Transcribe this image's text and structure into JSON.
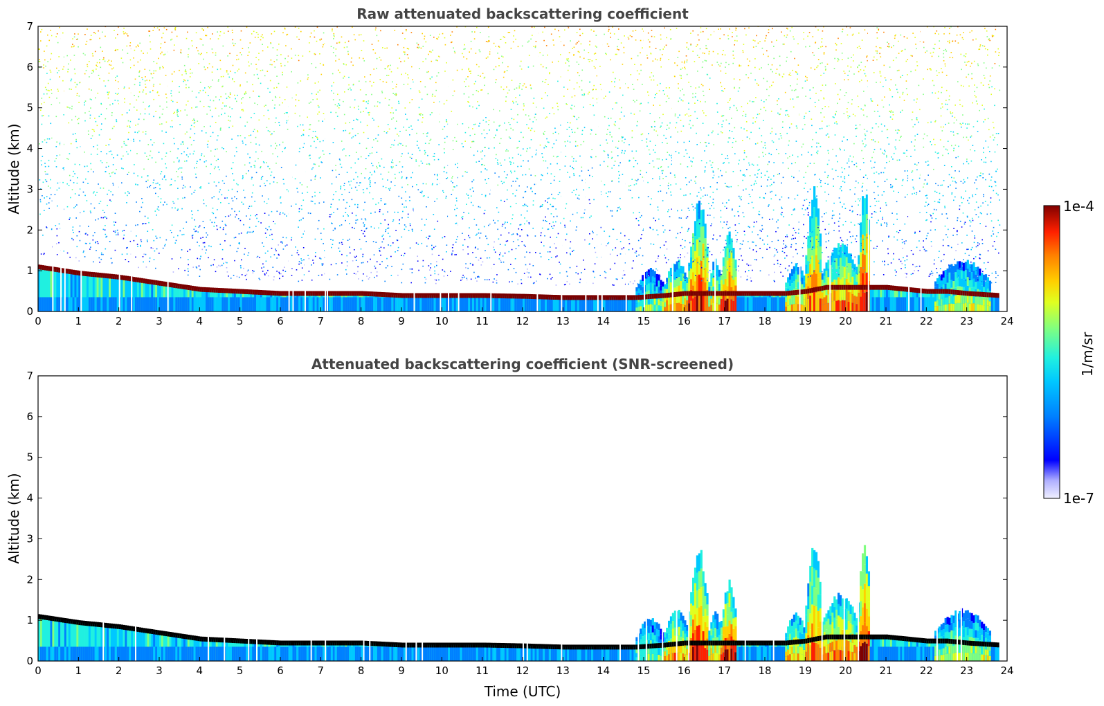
{
  "figure": {
    "colormap": [
      "#f0f0ff",
      "#b0b0ff",
      "#0000ff",
      "#0080ff",
      "#00c8ff",
      "#20f0e0",
      "#80ff80",
      "#e0ff20",
      "#ffd000",
      "#ff8000",
      "#ff2000",
      "#800000"
    ],
    "mark_colors": {
      "band": "#7a0000",
      "screened_band": "#000000",
      "frame": "#000000"
    }
  },
  "colorbar": {
    "max_label": "1e-4",
    "min_label": "1e-7",
    "unit_label": "1/m/sr",
    "range": [
      1e-07,
      0.0001
    ],
    "scale": "log"
  },
  "chart_data": [
    {
      "type": "heatmap",
      "title": "Raw attenuated backscattering coefficient",
      "xlabel": "",
      "ylabel": "Altitude (km)",
      "xlim": [
        0,
        24
      ],
      "ylim": [
        0,
        7
      ],
      "x_ticks": [
        "0",
        "1",
        "2",
        "3",
        "4",
        "5",
        "6",
        "7",
        "8",
        "9",
        "10",
        "11",
        "12",
        "13",
        "14",
        "15",
        "16",
        "17",
        "18",
        "19",
        "20",
        "21",
        "22",
        "23",
        "24"
      ],
      "y_ticks": [
        "0",
        "1",
        "2",
        "3",
        "4",
        "5",
        "6",
        "7"
      ],
      "boundary_layer_top_km": {
        "x": [
          0,
          1,
          2,
          3,
          4,
          5,
          6,
          7,
          8,
          9,
          10,
          11,
          12,
          13,
          14,
          14.8,
          15.5,
          16,
          16.5,
          17,
          17.5,
          18,
          18.5,
          19,
          19.5,
          20,
          20.5,
          21,
          21.5,
          22,
          22.5,
          23,
          23.8
        ],
        "y": [
          1.1,
          0.95,
          0.85,
          0.7,
          0.55,
          0.5,
          0.45,
          0.45,
          0.45,
          0.4,
          0.4,
          0.4,
          0.38,
          0.35,
          0.35,
          0.35,
          0.4,
          0.45,
          0.45,
          0.45,
          0.45,
          0.45,
          0.45,
          0.5,
          0.6,
          0.6,
          0.6,
          0.6,
          0.55,
          0.5,
          0.5,
          0.45,
          0.4
        ]
      },
      "clouds": [
        {
          "start": 14.8,
          "end": 15.5,
          "top_km": 1.1,
          "peak": 0.55
        },
        {
          "start": 15.5,
          "end": 16.1,
          "top_km": 1.3,
          "peak": 0.75
        },
        {
          "start": 16.1,
          "end": 16.6,
          "top_km": 2.8,
          "peak": 0.85
        },
        {
          "start": 16.6,
          "end": 16.9,
          "top_km": 1.3,
          "peak": 0.7
        },
        {
          "start": 16.9,
          "end": 17.3,
          "top_km": 2.0,
          "peak": 0.9
        },
        {
          "start": 18.5,
          "end": 19.0,
          "top_km": 1.2,
          "peak": 0.7
        },
        {
          "start": 19.0,
          "end": 19.4,
          "top_km": 3.1,
          "peak": 0.8
        },
        {
          "start": 19.4,
          "end": 20.3,
          "top_km": 1.7,
          "peak": 0.8
        },
        {
          "start": 20.3,
          "end": 20.6,
          "top_km": 3.1,
          "peak": 0.9
        },
        {
          "start": 22.2,
          "end": 23.6,
          "top_km": 1.3,
          "peak": 0.6
        }
      ]
    },
    {
      "type": "heatmap",
      "title": "Attenuated backscattering coefficient (SNR-screened)",
      "xlabel": "Time (UTC)",
      "ylabel": "Altitude (km)",
      "xlim": [
        0,
        24
      ],
      "ylim": [
        0,
        7
      ],
      "x_ticks": [
        "0",
        "1",
        "2",
        "3",
        "4",
        "5",
        "6",
        "7",
        "8",
        "9",
        "10",
        "11",
        "12",
        "13",
        "14",
        "15",
        "16",
        "17",
        "18",
        "19",
        "20",
        "21",
        "22",
        "23",
        "24"
      ],
      "y_ticks": [
        "0",
        "1",
        "2",
        "3",
        "4",
        "5",
        "6",
        "7"
      ]
    }
  ]
}
